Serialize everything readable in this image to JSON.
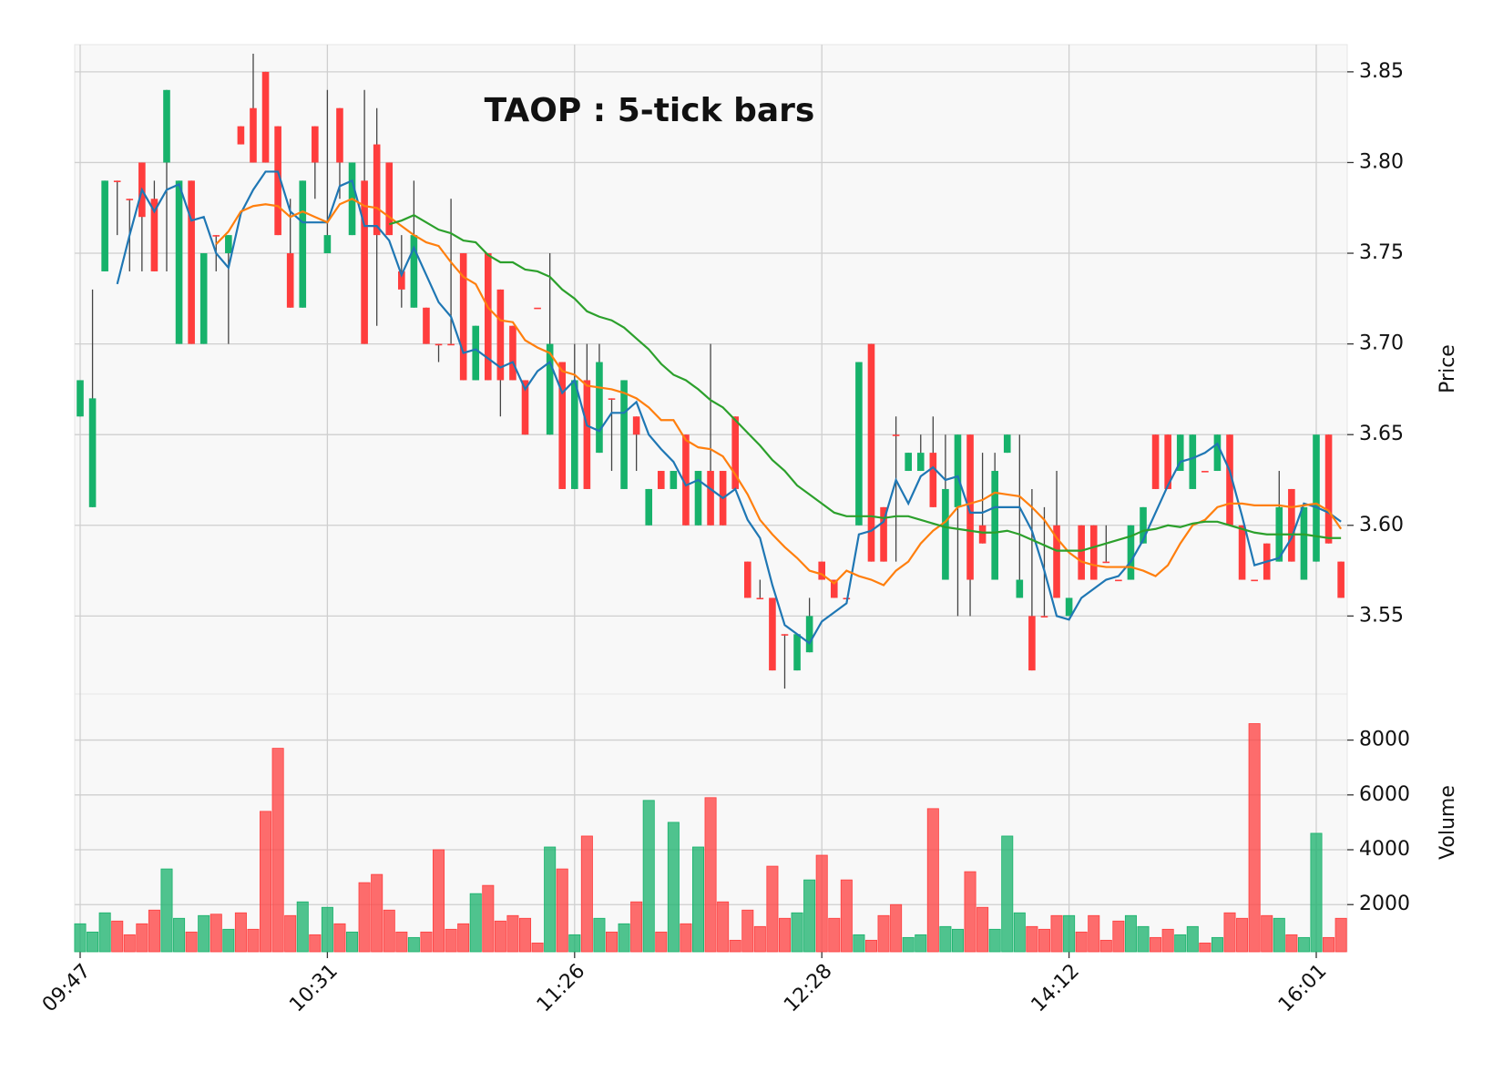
{
  "chart_data": {
    "type": "candlestick",
    "title": "TAOP : 5-tick bars",
    "ylabel": "Price",
    "volume_label": "Volume",
    "grid": true,
    "up_color": "#17b26b",
    "down_color": "#ff3d3d",
    "wick_color": "#444444",
    "categories": [
      "09:47",
      null,
      null,
      null,
      null,
      null,
      null,
      null,
      null,
      null,
      null,
      null,
      null,
      null,
      null,
      null,
      null,
      null,
      null,
      null,
      "10:31",
      null,
      null,
      null,
      null,
      null,
      null,
      null,
      null,
      null,
      null,
      null,
      null,
      null,
      null,
      null,
      null,
      null,
      null,
      null,
      "11:26",
      null,
      null,
      null,
      null,
      null,
      null,
      null,
      null,
      null,
      null,
      null,
      null,
      null,
      null,
      null,
      null,
      null,
      null,
      null,
      "12:28",
      null,
      null,
      null,
      null,
      null,
      null,
      null,
      null,
      null,
      null,
      null,
      null,
      null,
      null,
      null,
      null,
      null,
      null,
      null,
      "14:12",
      null,
      null,
      null,
      null,
      null,
      null,
      null,
      null,
      null,
      null,
      null,
      null,
      null,
      null,
      null,
      null,
      null,
      null,
      null,
      "16:01",
      null,
      null
    ],
    "open": [
      3.66,
      3.61,
      3.74,
      3.79,
      3.78,
      3.8,
      3.78,
      3.8,
      3.7,
      3.79,
      3.7,
      3.76,
      3.75,
      3.82,
      3.83,
      3.85,
      3.82,
      3.75,
      3.72,
      3.82,
      3.75,
      3.83,
      3.76,
      3.79,
      3.81,
      3.8,
      3.74,
      3.72,
      3.72,
      3.7,
      3.7,
      3.75,
      3.68,
      3.75,
      3.73,
      3.71,
      3.68,
      3.72,
      3.65,
      3.69,
      3.62,
      3.68,
      3.64,
      3.67,
      3.62,
      3.66,
      3.6,
      3.63,
      3.62,
      3.65,
      3.6,
      3.63,
      3.63,
      3.66,
      3.58,
      3.56,
      3.56,
      3.54,
      3.52,
      3.53,
      3.58,
      3.57,
      3.56,
      3.6,
      3.7,
      3.61,
      3.65,
      3.63,
      3.63,
      3.64,
      3.57,
      3.61,
      3.65,
      3.6,
      3.57,
      3.64,
      3.56,
      3.55,
      3.55,
      3.6,
      3.55,
      3.6,
      3.6,
      3.58,
      3.57,
      3.57,
      3.59,
      3.65,
      3.65,
      3.63,
      3.62,
      3.63,
      3.63,
      3.65,
      3.6,
      3.57,
      3.59,
      3.58,
      3.62,
      3.57,
      3.58,
      3.65,
      3.58
    ],
    "high": [
      3.68,
      3.73,
      3.79,
      3.79,
      3.78,
      3.8,
      3.79,
      3.84,
      3.79,
      3.79,
      3.75,
      3.76,
      3.76,
      3.82,
      3.86,
      3.85,
      3.82,
      3.78,
      3.79,
      3.82,
      3.84,
      3.83,
      3.8,
      3.84,
      3.83,
      3.8,
      3.76,
      3.79,
      3.72,
      3.7,
      3.78,
      3.75,
      3.71,
      3.75,
      3.73,
      3.71,
      3.68,
      3.72,
      3.75,
      3.69,
      3.7,
      3.7,
      3.7,
      3.67,
      3.68,
      3.66,
      3.62,
      3.63,
      3.63,
      3.65,
      3.63,
      3.7,
      3.63,
      3.66,
      3.58,
      3.57,
      3.56,
      3.54,
      3.54,
      3.56,
      3.58,
      3.57,
      3.56,
      3.69,
      3.7,
      3.61,
      3.66,
      3.64,
      3.65,
      3.66,
      3.65,
      3.65,
      3.65,
      3.64,
      3.64,
      3.65,
      3.65,
      3.62,
      3.61,
      3.63,
      3.56,
      3.6,
      3.6,
      3.6,
      3.57,
      3.6,
      3.61,
      3.65,
      3.65,
      3.65,
      3.65,
      3.63,
      3.65,
      3.65,
      3.6,
      3.57,
      3.59,
      3.63,
      3.62,
      3.61,
      3.65,
      3.65,
      3.58
    ],
    "low": [
      3.66,
      3.61,
      3.74,
      3.76,
      3.74,
      3.74,
      3.74,
      3.74,
      3.7,
      3.7,
      3.7,
      3.74,
      3.7,
      3.81,
      3.8,
      3.8,
      3.76,
      3.72,
      3.72,
      3.78,
      3.75,
      3.78,
      3.76,
      3.7,
      3.71,
      3.76,
      3.72,
      3.72,
      3.7,
      3.69,
      3.7,
      3.68,
      3.68,
      3.68,
      3.66,
      3.68,
      3.65,
      3.72,
      3.65,
      3.62,
      3.62,
      3.62,
      3.64,
      3.63,
      3.62,
      3.63,
      3.6,
      3.62,
      3.62,
      3.6,
      3.6,
      3.6,
      3.6,
      3.62,
      3.56,
      3.56,
      3.52,
      3.51,
      3.52,
      3.53,
      3.57,
      3.56,
      3.56,
      3.6,
      3.58,
      3.58,
      3.58,
      3.63,
      3.63,
      3.61,
      3.57,
      3.55,
      3.55,
      3.59,
      3.57,
      3.64,
      3.56,
      3.52,
      3.55,
      3.56,
      3.55,
      3.57,
      3.57,
      3.58,
      3.57,
      3.57,
      3.59,
      3.62,
      3.62,
      3.63,
      3.62,
      3.63,
      3.63,
      3.6,
      3.57,
      3.57,
      3.57,
      3.58,
      3.58,
      3.57,
      3.58,
      3.59,
      3.56
    ],
    "close": [
      3.68,
      3.67,
      3.79,
      3.79,
      3.78,
      3.77,
      3.74,
      3.84,
      3.79,
      3.7,
      3.75,
      3.76,
      3.76,
      3.81,
      3.8,
      3.8,
      3.76,
      3.72,
      3.79,
      3.8,
      3.76,
      3.8,
      3.8,
      3.7,
      3.76,
      3.76,
      3.73,
      3.76,
      3.7,
      3.7,
      3.7,
      3.68,
      3.71,
      3.68,
      3.68,
      3.68,
      3.65,
      3.72,
      3.7,
      3.62,
      3.68,
      3.62,
      3.69,
      3.67,
      3.68,
      3.65,
      3.62,
      3.62,
      3.63,
      3.6,
      3.63,
      3.6,
      3.6,
      3.62,
      3.56,
      3.56,
      3.52,
      3.54,
      3.54,
      3.55,
      3.57,
      3.56,
      3.56,
      3.69,
      3.58,
      3.58,
      3.65,
      3.64,
      3.64,
      3.61,
      3.62,
      3.65,
      3.57,
      3.59,
      3.63,
      3.65,
      3.57,
      3.52,
      3.55,
      3.56,
      3.56,
      3.57,
      3.57,
      3.58,
      3.57,
      3.6,
      3.61,
      3.62,
      3.62,
      3.65,
      3.65,
      3.63,
      3.65,
      3.6,
      3.57,
      3.57,
      3.57,
      3.61,
      3.58,
      3.61,
      3.65,
      3.59,
      3.56
    ],
    "volume": [
      1300,
      1000,
      1700,
      1400,
      900,
      1300,
      1800,
      3300,
      1500,
      1000,
      1600,
      1650,
      1100,
      1700,
      1100,
      5400,
      7700,
      1600,
      2100,
      900,
      1900,
      1300,
      1000,
      2800,
      3100,
      1800,
      1000,
      800,
      1000,
      4000,
      1100,
      1300,
      2400,
      2700,
      1400,
      1600,
      1500,
      600,
      4100,
      3300,
      900,
      4500,
      1500,
      1000,
      1300,
      2100,
      5800,
      1000,
      5000,
      1300,
      4100,
      5900,
      2100,
      700,
      1800,
      1200,
      3400,
      1500,
      1700,
      2900,
      3800,
      1500,
      2900,
      900,
      700,
      1600,
      2000,
      800,
      900,
      5500,
      1200,
      1100,
      3200,
      1900,
      1100,
      4500,
      1700,
      1200,
      1100,
      1600,
      1600,
      1000,
      1600,
      700,
      1400,
      1600,
      1200,
      800,
      1100,
      900,
      1200,
      600,
      800,
      1700,
      1500,
      8600,
      1600,
      1500,
      900,
      800,
      4600,
      800,
      1500
    ],
    "moving_averages": [
      {
        "color": "#1f77b4",
        "values": [
          null,
          null,
          null,
          3.733,
          3.76,
          3.785,
          3.773,
          3.785,
          3.788,
          3.768,
          3.77,
          3.75,
          3.742,
          3.772,
          3.785,
          3.795,
          3.795,
          3.773,
          3.767,
          3.767,
          3.767,
          3.787,
          3.79,
          3.765,
          3.765,
          3.757,
          3.738,
          3.753,
          3.738,
          3.723,
          3.715,
          3.695,
          3.697,
          3.692,
          3.687,
          3.69,
          3.675,
          3.685,
          3.69,
          3.673,
          3.68,
          3.655,
          3.652,
          3.662,
          3.662,
          3.668,
          3.65,
          3.642,
          3.635,
          3.622,
          3.625,
          3.62,
          3.615,
          3.62,
          3.603,
          3.593,
          3.567,
          3.545,
          3.54,
          3.535,
          3.547,
          3.552,
          3.557,
          3.595,
          3.597,
          3.602,
          3.625,
          3.612,
          3.627,
          3.632,
          3.625,
          3.627,
          3.607,
          3.607,
          3.61,
          3.61,
          3.61,
          3.597,
          3.575,
          3.55,
          3.548,
          3.56,
          3.565,
          3.57,
          3.572,
          3.58,
          3.592,
          3.607,
          3.622,
          3.635,
          3.637,
          3.64,
          3.645,
          3.63,
          3.605,
          3.578,
          3.58,
          3.582,
          3.593,
          3.612,
          3.61,
          3.607,
          3.602
        ]
      },
      {
        "color": "#ff7f0e",
        "values": [
          null,
          null,
          null,
          null,
          null,
          null,
          null,
          null,
          null,
          null,
          null,
          3.755,
          3.762,
          3.773,
          3.776,
          3.777,
          3.776,
          3.77,
          3.773,
          3.77,
          3.767,
          3.777,
          3.78,
          3.776,
          3.775,
          3.77,
          3.765,
          3.76,
          3.756,
          3.754,
          3.745,
          3.737,
          3.733,
          3.72,
          3.713,
          3.712,
          3.702,
          3.698,
          3.695,
          3.685,
          3.683,
          3.677,
          3.676,
          3.675,
          3.673,
          3.67,
          3.665,
          3.658,
          3.658,
          3.647,
          3.643,
          3.642,
          3.638,
          3.628,
          3.617,
          3.603,
          3.595,
          3.588,
          3.582,
          3.575,
          3.573,
          3.568,
          3.575,
          3.572,
          3.57,
          3.567,
          3.575,
          3.58,
          3.59,
          3.597,
          3.602,
          3.61,
          3.612,
          3.614,
          3.618,
          3.617,
          3.616,
          3.61,
          3.603,
          3.593,
          3.585,
          3.58,
          3.578,
          3.577,
          3.577,
          3.577,
          3.575,
          3.572,
          3.578,
          3.59,
          3.6,
          3.603,
          3.61,
          3.612,
          3.612,
          3.611,
          3.611,
          3.611,
          3.61,
          3.611,
          3.612,
          3.608,
          3.598
        ]
      },
      {
        "color": "#2ca02c",
        "values": [
          null,
          null,
          null,
          null,
          null,
          null,
          null,
          null,
          null,
          null,
          null,
          null,
          null,
          null,
          null,
          null,
          null,
          null,
          null,
          null,
          null,
          null,
          null,
          null,
          null,
          3.766,
          3.768,
          3.771,
          3.767,
          3.763,
          3.761,
          3.757,
          3.756,
          3.749,
          3.745,
          3.745,
          3.741,
          3.74,
          3.737,
          3.73,
          3.725,
          3.718,
          3.715,
          3.713,
          3.709,
          3.703,
          3.697,
          3.689,
          3.683,
          3.68,
          3.675,
          3.669,
          3.665,
          3.658,
          3.651,
          3.644,
          3.636,
          3.63,
          3.622,
          3.617,
          3.612,
          3.607,
          3.605,
          3.605,
          3.605,
          3.604,
          3.605,
          3.605,
          3.603,
          3.601,
          3.599,
          3.598,
          3.597,
          3.596,
          3.596,
          3.597,
          3.595,
          3.592,
          3.589,
          3.586,
          3.586,
          3.586,
          3.588,
          3.59,
          3.592,
          3.594,
          3.597,
          3.598,
          3.6,
          3.599,
          3.601,
          3.602,
          3.602,
          3.6,
          3.598,
          3.596,
          3.595,
          3.595,
          3.595,
          3.595,
          3.594,
          3.593,
          3.593
        ]
      }
    ],
    "ylim": [
      3.507,
      3.865
    ],
    "yticks": [
      3.55,
      {
        "value": 3.6,
        "label": "3.60"
      },
      3.65,
      {
        "value": 3.7,
        "label": "3.70"
      },
      3.75,
      {
        "value": 3.8,
        "label": "3.80"
      },
      3.85
    ],
    "volume_ylim": [
      280,
      9680
    ],
    "volume_yticks": [
      2000,
      4000,
      6000,
      8000
    ]
  }
}
